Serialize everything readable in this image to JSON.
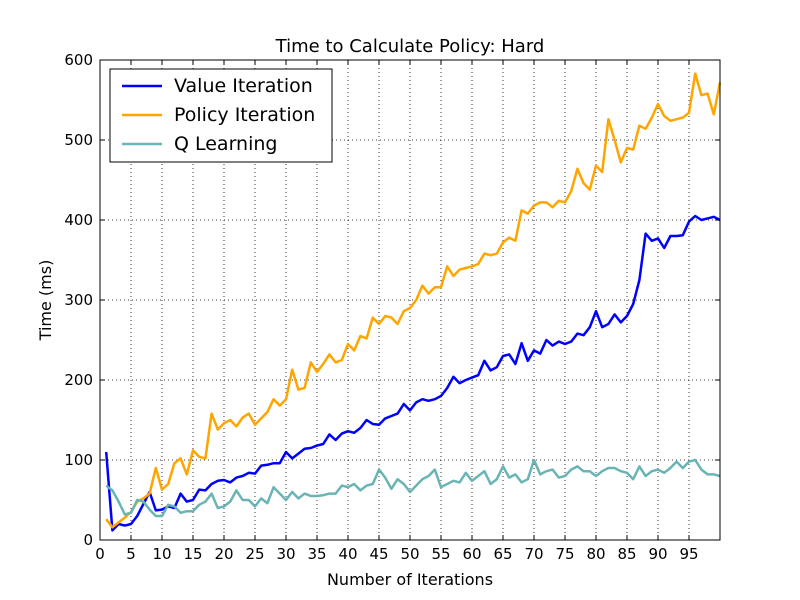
{
  "chart_data": {
    "type": "line",
    "title": "Time to Calculate Policy: Hard",
    "xlabel": "Number of Iterations",
    "ylabel": "Time (ms)",
    "xlim": [
      0,
      100
    ],
    "ylim": [
      0,
      600
    ],
    "xticks": [
      0,
      5,
      10,
      15,
      20,
      25,
      30,
      35,
      40,
      45,
      50,
      55,
      60,
      65,
      70,
      75,
      80,
      85,
      90,
      95
    ],
    "yticks": [
      0,
      100,
      200,
      300,
      400,
      500,
      600
    ],
    "grid": true,
    "legend_position": "top-left",
    "x": [
      1,
      2,
      3,
      4,
      5,
      6,
      7,
      8,
      9,
      10,
      11,
      12,
      13,
      14,
      15,
      16,
      17,
      18,
      19,
      20,
      21,
      22,
      23,
      24,
      25,
      26,
      27,
      28,
      29,
      30,
      31,
      32,
      33,
      34,
      35,
      36,
      37,
      38,
      39,
      40,
      41,
      42,
      43,
      44,
      45,
      46,
      47,
      48,
      49,
      50,
      51,
      52,
      53,
      54,
      55,
      56,
      57,
      58,
      59,
      60,
      61,
      62,
      63,
      64,
      65,
      66,
      67,
      68,
      69,
      70,
      71,
      72,
      73,
      74,
      75,
      76,
      77,
      78,
      79,
      80,
      81,
      82,
      83,
      84,
      85,
      86,
      87,
      88,
      89,
      90,
      91,
      92,
      93,
      94,
      95,
      96,
      97,
      98,
      99,
      100
    ],
    "series": [
      {
        "name": "Value Iteration",
        "color": "#0000ff",
        "values": [
          110,
          12,
          20,
          18,
          20,
          30,
          45,
          60,
          37,
          38,
          42,
          40,
          58,
          48,
          50,
          63,
          62,
          70,
          74,
          75,
          72,
          78,
          80,
          84,
          83,
          93,
          94,
          96,
          96,
          110,
          102,
          108,
          114,
          115,
          118,
          120,
          132,
          125,
          133,
          136,
          134,
          140,
          150,
          145,
          144,
          152,
          155,
          158,
          170,
          162,
          172,
          176,
          174,
          176,
          180,
          190,
          204,
          196,
          200,
          203,
          206,
          224,
          212,
          216,
          230,
          232,
          220,
          246,
          224,
          237,
          233,
          250,
          243,
          248,
          245,
          248,
          258,
          256,
          266,
          286,
          266,
          270,
          282,
          272,
          280,
          295,
          325,
          383,
          374,
          377,
          365,
          380,
          380,
          381,
          398,
          405,
          400,
          402,
          404,
          400
        ]
      },
      {
        "name": "Policy Iteration",
        "color": "#ffa500",
        "values": [
          26,
          16,
          22,
          28,
          35,
          48,
          52,
          58,
          90,
          63,
          70,
          96,
          102,
          82,
          112,
          104,
          102,
          158,
          138,
          146,
          150,
          142,
          153,
          158,
          144,
          152,
          160,
          176,
          168,
          176,
          213,
          188,
          190,
          222,
          210,
          220,
          232,
          222,
          225,
          245,
          237,
          255,
          252,
          278,
          270,
          280,
          278,
          270,
          286,
          290,
          300,
          318,
          308,
          316,
          316,
          342,
          330,
          338,
          340,
          342,
          345,
          358,
          356,
          358,
          372,
          378,
          374,
          412,
          408,
          418,
          422,
          422,
          416,
          424,
          422,
          436,
          464,
          446,
          438,
          468,
          460,
          526,
          500,
          472,
          490,
          488,
          518,
          514,
          528,
          545,
          530,
          524,
          526,
          528,
          534,
          583,
          556,
          558,
          532,
          572
        ]
      },
      {
        "name": "Q Learning",
        "color": "#6ab4b4",
        "values": [
          68,
          62,
          48,
          32,
          34,
          50,
          48,
          38,
          30,
          30,
          44,
          42,
          34,
          36,
          36,
          44,
          48,
          58,
          40,
          42,
          48,
          62,
          50,
          50,
          42,
          52,
          46,
          66,
          58,
          50,
          60,
          52,
          58,
          55,
          55,
          56,
          58,
          58,
          68,
          66,
          70,
          62,
          68,
          70,
          88,
          78,
          64,
          76,
          70,
          60,
          68,
          76,
          80,
          88,
          66,
          70,
          74,
          72,
          84,
          74,
          80,
          86,
          70,
          76,
          92,
          78,
          82,
          72,
          76,
          100,
          82,
          86,
          88,
          78,
          80,
          88,
          92,
          86,
          86,
          80,
          86,
          90,
          90,
          86,
          84,
          76,
          92,
          80,
          86,
          88,
          84,
          90,
          98,
          90,
          98,
          100,
          88,
          82,
          82,
          80
        ]
      }
    ]
  }
}
